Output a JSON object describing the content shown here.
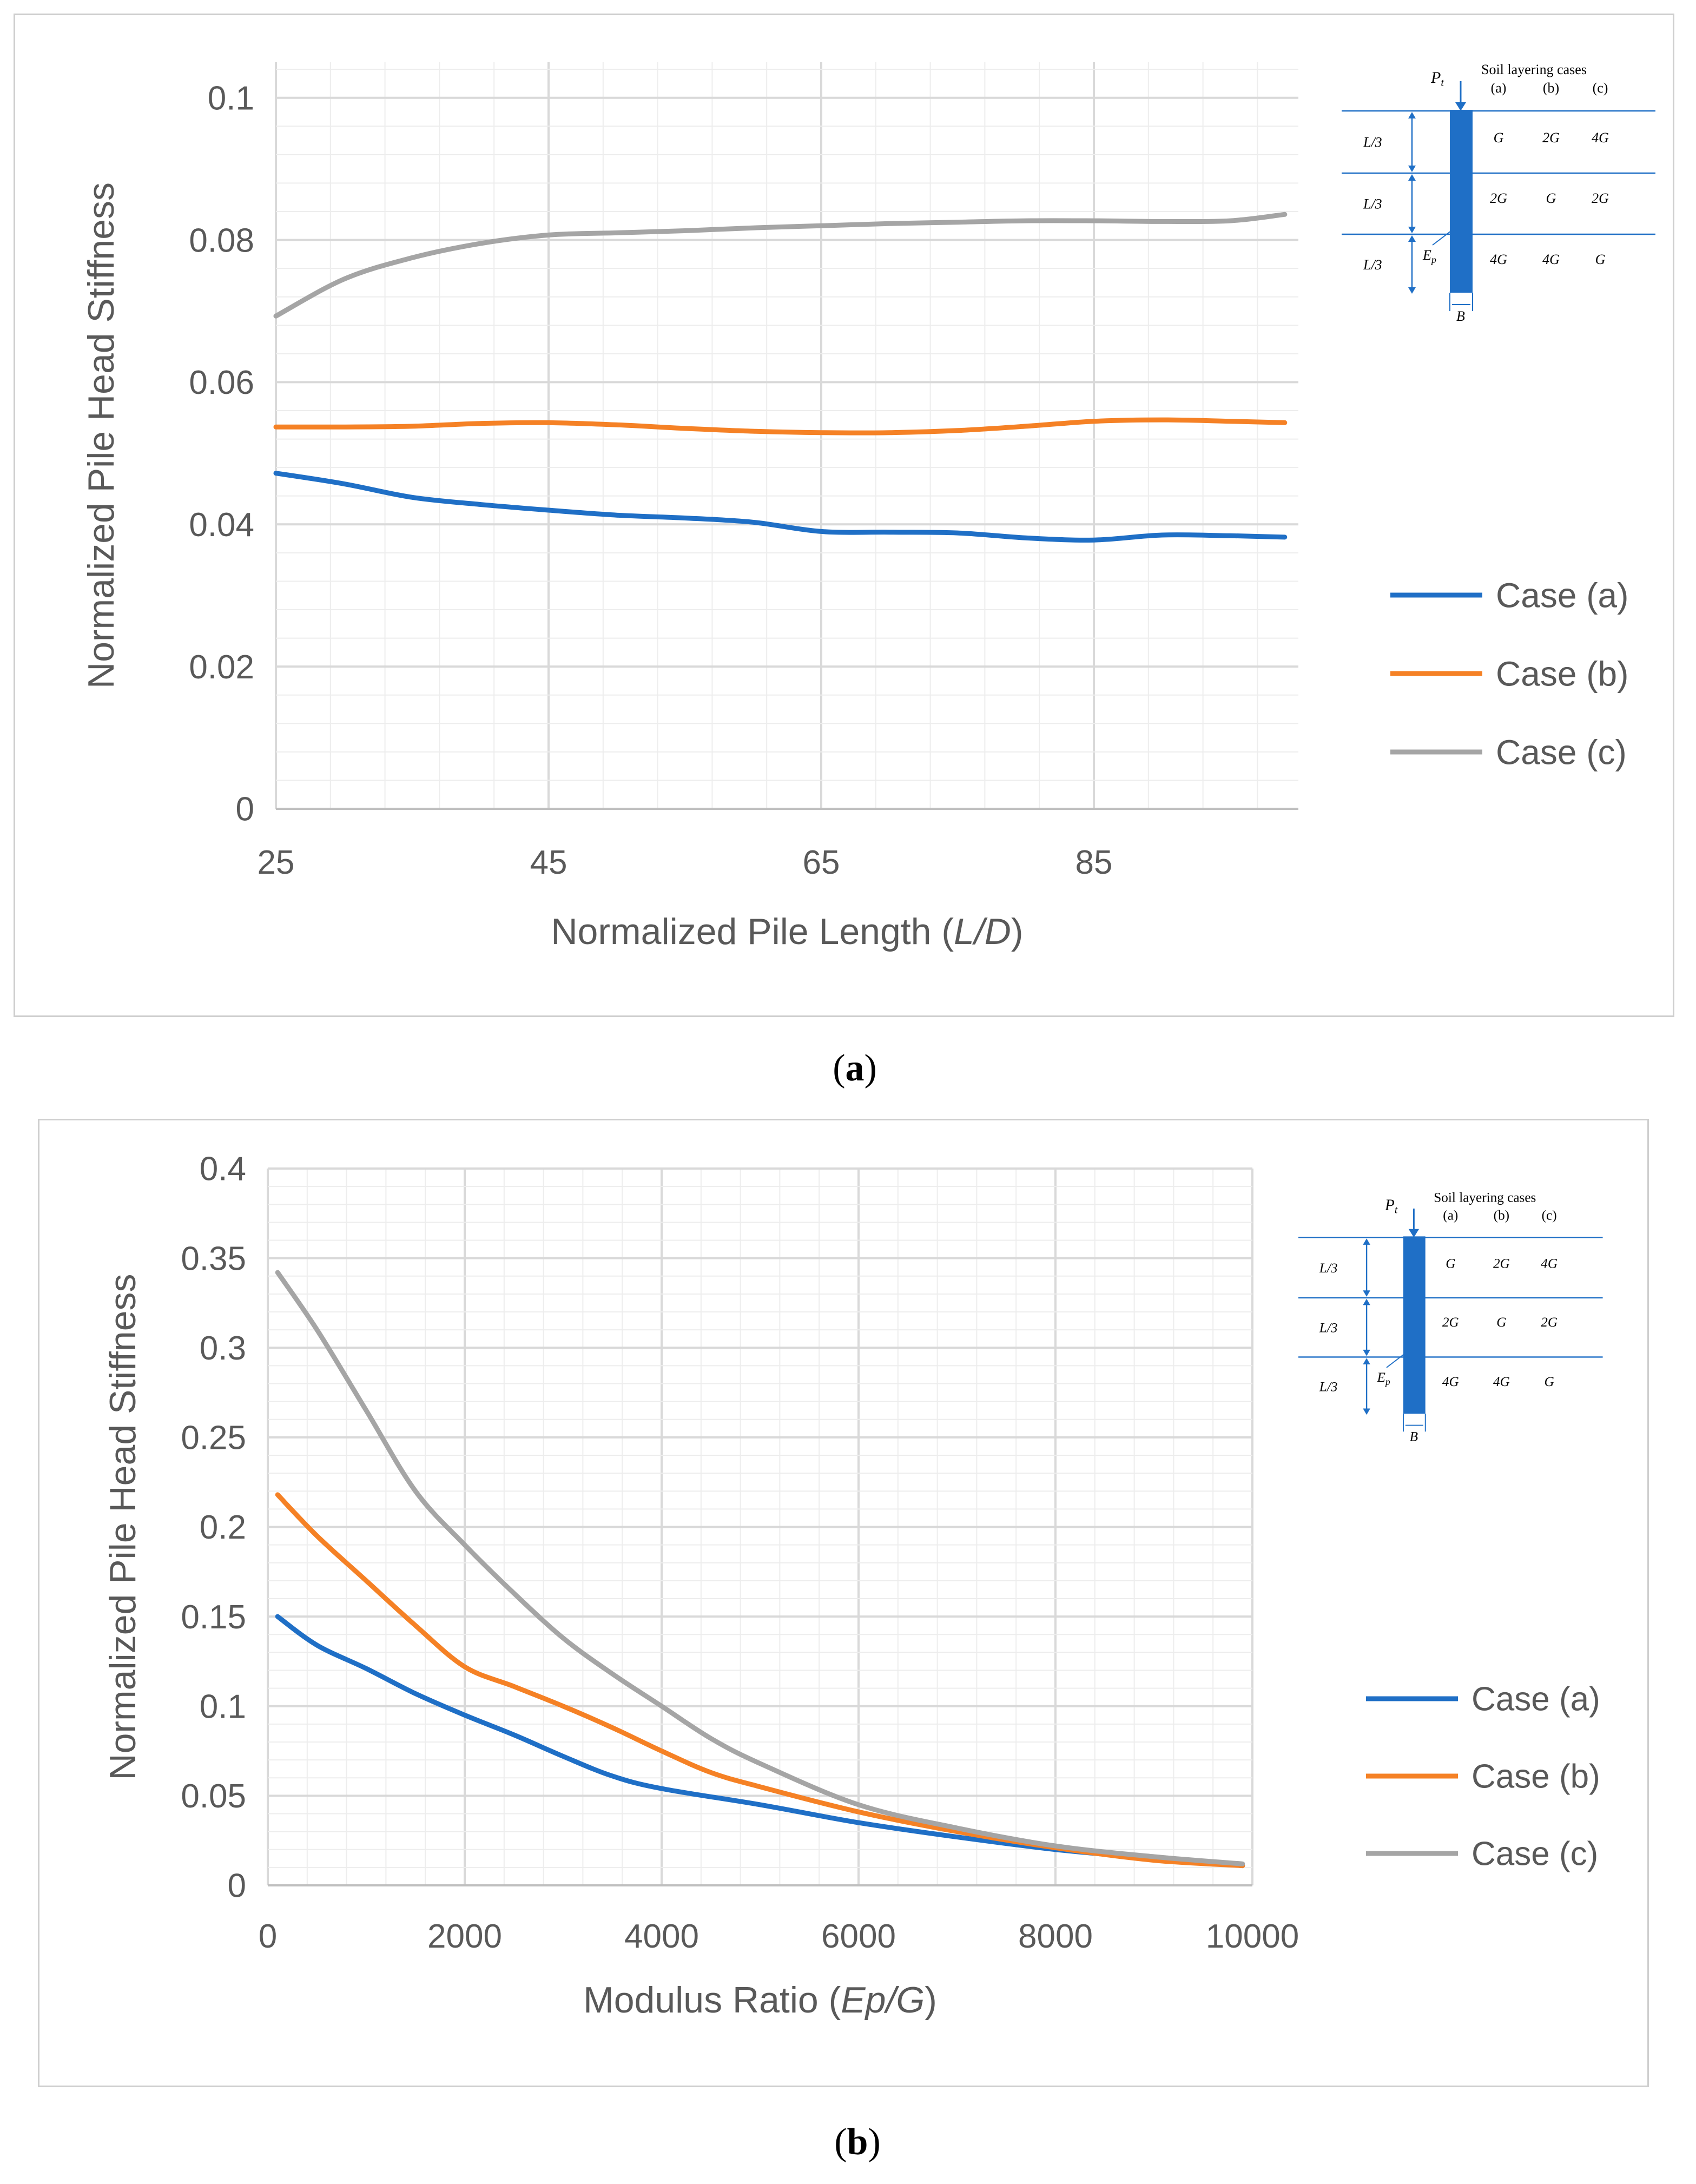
{
  "panel_labels": {
    "a": "a",
    "b": "b"
  },
  "colors": {
    "case_a": "#1f6fc6",
    "case_b": "#f58125",
    "case_c": "#a5a5a5",
    "grid_major": "#d9d9d9",
    "grid_minor": "#ededed",
    "schematic": "#1f6fc6"
  },
  "schematic": {
    "title": "Soil layering cases",
    "load": "Pt",
    "modulus": "Ep",
    "width": "B",
    "case_headers": [
      "(a)",
      "(b)",
      "(c)"
    ],
    "layer_labels": [
      "L/3",
      "L/3",
      "L/3"
    ],
    "rows": [
      [
        "G",
        "2G",
        "4G"
      ],
      [
        "2G",
        "G",
        "2G"
      ],
      [
        "4G",
        "4G",
        "G"
      ]
    ]
  },
  "chart_data": [
    {
      "type": "line",
      "panel": "a",
      "title": "",
      "xlabel": "Normalized Pile Length (L/D)",
      "xlabel_plain": "Normalized Pile Length (",
      "xlabel_italic": "L/D",
      "xlabel_close": ")",
      "ylabel": "Normalized Pile Head Stiffness",
      "xlim": [
        25,
        100
      ],
      "ylim": [
        0,
        0.105
      ],
      "xticks": [
        25,
        45,
        65,
        85
      ],
      "xtick_labels": [
        "25",
        "45",
        "65",
        "85"
      ],
      "yticks": [
        0,
        0.02,
        0.04,
        0.06,
        0.08,
        0.1
      ],
      "ytick_labels": [
        "0",
        "0.02",
        "0.04",
        "0.06",
        "0.08",
        "0.1"
      ],
      "legend": "right",
      "series": [
        {
          "name": "Case (a)",
          "x": [
            25,
            30,
            35,
            40,
            45,
            50,
            55,
            60,
            65,
            70,
            75,
            80,
            85,
            90,
            95,
            99
          ],
          "y": [
            0.0472,
            0.0457,
            0.0438,
            0.0428,
            0.042,
            0.0413,
            0.0409,
            0.0403,
            0.039,
            0.0389,
            0.0388,
            0.0381,
            0.0378,
            0.0385,
            0.0384,
            0.0382
          ]
        },
        {
          "name": "Case (b)",
          "x": [
            25,
            30,
            35,
            40,
            45,
            50,
            55,
            60,
            65,
            70,
            75,
            80,
            85,
            90,
            95,
            99
          ],
          "y": [
            0.0537,
            0.0537,
            0.0538,
            0.0542,
            0.0543,
            0.054,
            0.0535,
            0.0531,
            0.0529,
            0.0529,
            0.0532,
            0.0538,
            0.0545,
            0.0547,
            0.0545,
            0.0543
          ]
        },
        {
          "name": "Case (c)",
          "x": [
            25,
            30,
            35,
            40,
            45,
            50,
            55,
            60,
            65,
            70,
            75,
            80,
            85,
            90,
            95,
            99
          ],
          "y": [
            0.0693,
            0.0745,
            0.0775,
            0.0795,
            0.0807,
            0.081,
            0.0813,
            0.0817,
            0.082,
            0.0823,
            0.0825,
            0.0827,
            0.0827,
            0.0826,
            0.0827,
            0.0836
          ]
        }
      ]
    },
    {
      "type": "line",
      "panel": "b",
      "title": "",
      "xlabel": "Modulus Ratio (Ep/G)",
      "xlabel_plain": "Modulus Ratio (",
      "xlabel_italic": "Ep/G",
      "xlabel_close": ")",
      "ylabel": "Normalized Pile Head Stiffness",
      "xlim": [
        0,
        10000
      ],
      "ylim": [
        0,
        0.4
      ],
      "xticks": [
        0,
        2000,
        4000,
        6000,
        8000,
        10000
      ],
      "xtick_labels": [
        "0",
        "2000",
        "4000",
        "6000",
        "8000",
        "10000"
      ],
      "yticks": [
        0,
        0.05,
        0.1,
        0.15,
        0.2,
        0.25,
        0.3,
        0.35,
        0.4
      ],
      "ytick_labels": [
        "0",
        "0.05",
        "0.1",
        "0.15",
        "0.2",
        "0.25",
        "0.3",
        "0.35",
        "0.4"
      ],
      "legend": "right",
      "series": [
        {
          "name": "Case (a)",
          "x": [
            100,
            500,
            1000,
            1500,
            2000,
            2500,
            3000,
            3500,
            4000,
            5000,
            6000,
            7000,
            8000,
            9000,
            9900
          ],
          "y": [
            0.15,
            0.134,
            0.121,
            0.107,
            0.095,
            0.084,
            0.072,
            0.061,
            0.054,
            0.045,
            0.035,
            0.027,
            0.02,
            0.015,
            0.011
          ]
        },
        {
          "name": "Case (b)",
          "x": [
            100,
            500,
            1000,
            1500,
            2000,
            2500,
            3000,
            3500,
            4000,
            4500,
            5000,
            6000,
            7000,
            8000,
            9000,
            9900
          ],
          "y": [
            0.218,
            0.195,
            0.17,
            0.145,
            0.122,
            0.111,
            0.1,
            0.088,
            0.075,
            0.063,
            0.055,
            0.041,
            0.03,
            0.021,
            0.014,
            0.011
          ]
        },
        {
          "name": "Case (c)",
          "x": [
            100,
            500,
            1000,
            1500,
            2000,
            2500,
            3000,
            3500,
            4000,
            4500,
            5000,
            6000,
            7000,
            8000,
            9000,
            9900
          ],
          "y": [
            0.342,
            0.31,
            0.265,
            0.22,
            0.19,
            0.163,
            0.138,
            0.118,
            0.1,
            0.082,
            0.068,
            0.045,
            0.032,
            0.022,
            0.016,
            0.012
          ]
        }
      ]
    }
  ]
}
